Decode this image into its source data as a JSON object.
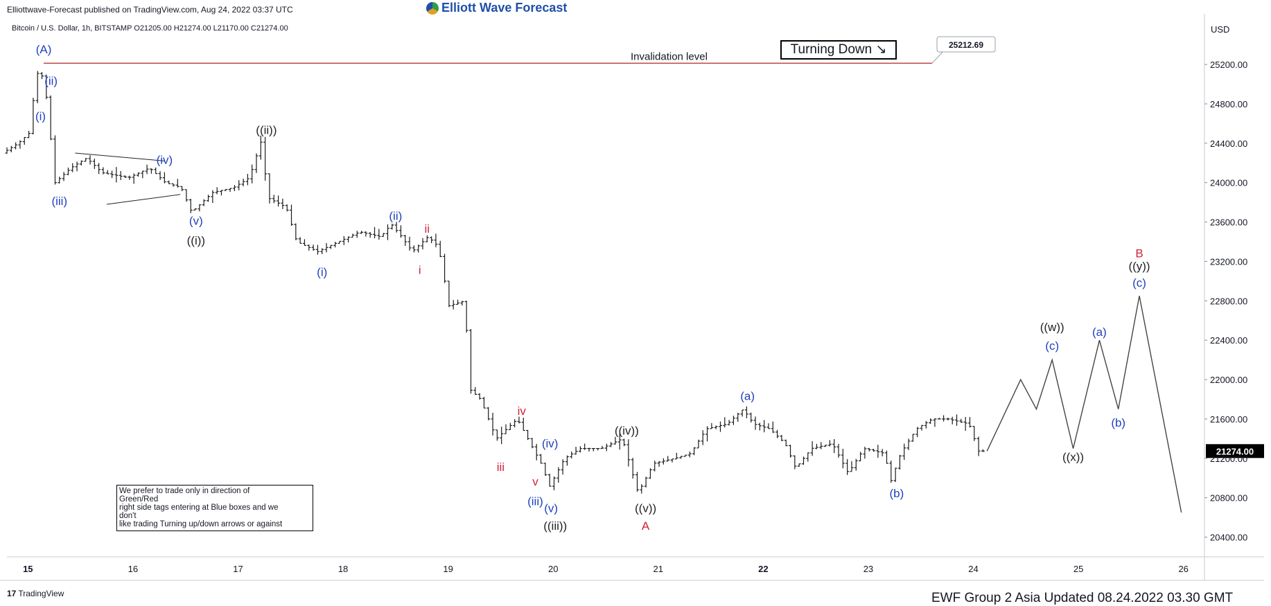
{
  "header": {
    "published": "Elliottwave-Forecast published on TradingView.com, Aug 24, 2022 03:37 UTC",
    "logo_text": "Elliott Wave Forecast",
    "symbol_line": "Bitcoin / U.S. Dollar, 1h, BITSTAMP  O21205.00  H21274.00  L21170.00  C21274.00",
    "currency": "USD"
  },
  "footer": {
    "brand": "TradingView",
    "brand_mark": "17",
    "update": "EWF Group 2 Asia  Updated 08.24.2022 03.30 GMT"
  },
  "annotations": {
    "turning_down": "Turning Down ↘",
    "invalidation_label": "Invalidation level",
    "invalidation_value": "25212.69",
    "note_lines": [
      "We prefer to trade only in direction of",
      "Green/Red",
      "right side tags entering at Blue boxes and we",
      "don't",
      "like trading Turning up/down arrows or against"
    ]
  },
  "colors": {
    "wave_blue": "#1f3fbf",
    "wave_black": "#222222",
    "wave_red": "#d1223a",
    "invalidation_line": "#b22222",
    "last_price_bg": "#000000"
  },
  "chart_data": {
    "type": "bar",
    "title": "Bitcoin / U.S. Dollar, 1h, BITSTAMP",
    "ylabel": "USD",
    "ylim": [
      20200,
      25700
    ],
    "y_ticks": [
      20400,
      20800,
      21200,
      21600,
      22000,
      22400,
      22800,
      23200,
      23600,
      24000,
      24400,
      24800,
      25200
    ],
    "y_tick_labels": [
      "20400.00",
      "20800.00",
      "21200.00",
      "21600.00",
      "22000.00",
      "22400.00",
      "22800.00",
      "23200.00",
      "23600.00",
      "24000.00",
      "24400.00",
      "24800.00",
      "25200.00"
    ],
    "xlim": [
      14.8,
      26.2
    ],
    "x_ticks": [
      15,
      16,
      17,
      18,
      19,
      20,
      21,
      22,
      23,
      24,
      25,
      26
    ],
    "x_tick_labels": [
      "15",
      "16",
      "17",
      "18",
      "19",
      "20",
      "21",
      "22",
      "23",
      "24",
      "25",
      "26"
    ],
    "x_bold_ticks": [
      15,
      22
    ],
    "last_price": 21274,
    "last_price_label": "21274.00",
    "invalidation_level": 25212.69,
    "price_path": [
      [
        14.8,
        24300
      ],
      [
        14.95,
        24400
      ],
      [
        15.05,
        24500
      ],
      [
        15.1,
        24900
      ],
      [
        15.15,
        25212
      ],
      [
        15.22,
        24850
      ],
      [
        15.3,
        24000
      ],
      [
        15.45,
        24150
      ],
      [
        15.6,
        24250
      ],
      [
        15.75,
        24100
      ],
      [
        16.0,
        24050
      ],
      [
        16.2,
        24150
      ],
      [
        16.35,
        24000
      ],
      [
        16.5,
        23950
      ],
      [
        16.6,
        23700
      ],
      [
        16.8,
        23900
      ],
      [
        17.0,
        23950
      ],
      [
        17.15,
        24050
      ],
      [
        17.27,
        24450
      ],
      [
        17.32,
        23850
      ],
      [
        17.5,
        23750
      ],
      [
        17.6,
        23400
      ],
      [
        17.8,
        23300
      ],
      [
        18.0,
        23400
      ],
      [
        18.2,
        23500
      ],
      [
        18.4,
        23450
      ],
      [
        18.5,
        23580
      ],
      [
        18.6,
        23450
      ],
      [
        18.7,
        23300
      ],
      [
        18.85,
        23450
      ],
      [
        18.95,
        23350
      ],
      [
        19.05,
        22750
      ],
      [
        19.2,
        22800
      ],
      [
        19.25,
        21900
      ],
      [
        19.35,
        21800
      ],
      [
        19.5,
        21400
      ],
      [
        19.7,
        21600
      ],
      [
        19.85,
        21300
      ],
      [
        19.95,
        21100
      ],
      [
        20.0,
        20900
      ],
      [
        20.15,
        21200
      ],
      [
        20.3,
        21300
      ],
      [
        20.5,
        21300
      ],
      [
        20.7,
        21400
      ],
      [
        20.85,
        20850
      ],
      [
        21.0,
        21150
      ],
      [
        21.2,
        21200
      ],
      [
        21.35,
        21250
      ],
      [
        21.5,
        21500
      ],
      [
        21.7,
        21550
      ],
      [
        21.85,
        21700
      ],
      [
        21.95,
        21550
      ],
      [
        22.1,
        21500
      ],
      [
        22.25,
        21350
      ],
      [
        22.35,
        21100
      ],
      [
        22.5,
        21300
      ],
      [
        22.7,
        21350
      ],
      [
        22.85,
        21050
      ],
      [
        23.0,
        21300
      ],
      [
        23.2,
        21250
      ],
      [
        23.25,
        20950
      ],
      [
        23.35,
        21250
      ],
      [
        23.5,
        21500
      ],
      [
        23.65,
        21600
      ],
      [
        23.8,
        21600
      ],
      [
        24.0,
        21550
      ],
      [
        24.1,
        21250
      ],
      [
        24.13,
        21274
      ]
    ],
    "projection": [
      [
        24.13,
        21274
      ],
      [
        24.45,
        22000
      ],
      [
        24.6,
        21700
      ],
      [
        24.75,
        22200
      ],
      [
        24.95,
        21300
      ],
      [
        25.2,
        22400
      ],
      [
        25.38,
        21700
      ],
      [
        25.58,
        22850
      ],
      [
        25.98,
        20650
      ]
    ],
    "labels": [
      {
        "text": "(A)",
        "x": 15.15,
        "y": 25270,
        "color": "blue",
        "pos": "above"
      },
      {
        "text": "(ii)",
        "x": 15.22,
        "y": 24950,
        "color": "blue",
        "pos": "above"
      },
      {
        "text": "(i)",
        "x": 15.12,
        "y": 24760,
        "color": "blue",
        "pos": "below"
      },
      {
        "text": "(iii)",
        "x": 15.3,
        "y": 23900,
        "color": "blue",
        "pos": "below"
      },
      {
        "text": "(iv)",
        "x": 16.3,
        "y": 24150,
        "color": "blue",
        "pos": "above"
      },
      {
        "text": "(v)",
        "x": 16.6,
        "y": 23700,
        "color": "blue",
        "pos": "below"
      },
      {
        "text": "((i))",
        "x": 16.6,
        "y": 23500,
        "color": "black",
        "pos": "below"
      },
      {
        "text": "((ii))",
        "x": 17.27,
        "y": 24450,
        "color": "black",
        "pos": "above"
      },
      {
        "text": "(i)",
        "x": 17.8,
        "y": 23180,
        "color": "blue",
        "pos": "below"
      },
      {
        "text": "(ii)",
        "x": 18.5,
        "y": 23580,
        "color": "blue",
        "pos": "above"
      },
      {
        "text": "i",
        "x": 18.73,
        "y": 23200,
        "color": "red",
        "pos": "below"
      },
      {
        "text": "ii",
        "x": 18.8,
        "y": 23450,
        "color": "red",
        "pos": "above"
      },
      {
        "text": "iii",
        "x": 19.5,
        "y": 21200,
        "color": "red",
        "pos": "below"
      },
      {
        "text": "iv",
        "x": 19.7,
        "y": 21600,
        "color": "red",
        "pos": "above"
      },
      {
        "text": "v",
        "x": 19.83,
        "y": 21050,
        "color": "red",
        "pos": "below"
      },
      {
        "text": "(iii)",
        "x": 19.83,
        "y": 20850,
        "color": "blue",
        "pos": "below"
      },
      {
        "text": "(iv)",
        "x": 19.97,
        "y": 21270,
        "color": "blue",
        "pos": "above"
      },
      {
        "text": "(v)",
        "x": 19.98,
        "y": 20780,
        "color": "blue",
        "pos": "below"
      },
      {
        "text": "((iii))",
        "x": 20.02,
        "y": 20600,
        "color": "black",
        "pos": "below"
      },
      {
        "text": "((iv))",
        "x": 20.7,
        "y": 21400,
        "color": "black",
        "pos": "above"
      },
      {
        "text": "((v))",
        "x": 20.88,
        "y": 20780,
        "color": "black",
        "pos": "below"
      },
      {
        "text": "A",
        "x": 20.88,
        "y": 20600,
        "color": "red",
        "pos": "below"
      },
      {
        "text": "(a)",
        "x": 21.85,
        "y": 21750,
        "color": "blue",
        "pos": "above"
      },
      {
        "text": "(b)",
        "x": 23.27,
        "y": 20930,
        "color": "blue",
        "pos": "below"
      },
      {
        "text": "((w))",
        "x": 24.75,
        "y": 22450,
        "color": "black",
        "pos": "above"
      },
      {
        "text": "(c)",
        "x": 24.75,
        "y": 22260,
        "color": "blue",
        "pos": "above"
      },
      {
        "text": "((x))",
        "x": 24.95,
        "y": 21300,
        "color": "black",
        "pos": "below"
      },
      {
        "text": "(a)",
        "x": 25.2,
        "y": 22400,
        "color": "blue",
        "pos": "above"
      },
      {
        "text": "(b)",
        "x": 25.38,
        "y": 21650,
        "color": "blue",
        "pos": "below"
      },
      {
        "text": "B",
        "x": 25.58,
        "y": 23200,
        "color": "red",
        "pos": "above"
      },
      {
        "text": "((y))",
        "x": 25.58,
        "y": 23070,
        "color": "black",
        "pos": "above"
      },
      {
        "text": "(c)",
        "x": 25.58,
        "y": 22900,
        "color": "blue",
        "pos": "above"
      }
    ],
    "triangle": {
      "upper": [
        [
          15.45,
          24300
        ],
        [
          16.3,
          24220
        ]
      ],
      "lower": [
        [
          15.75,
          23780
        ],
        [
          16.45,
          23880
        ]
      ]
    },
    "grid": false,
    "legend": "none"
  }
}
